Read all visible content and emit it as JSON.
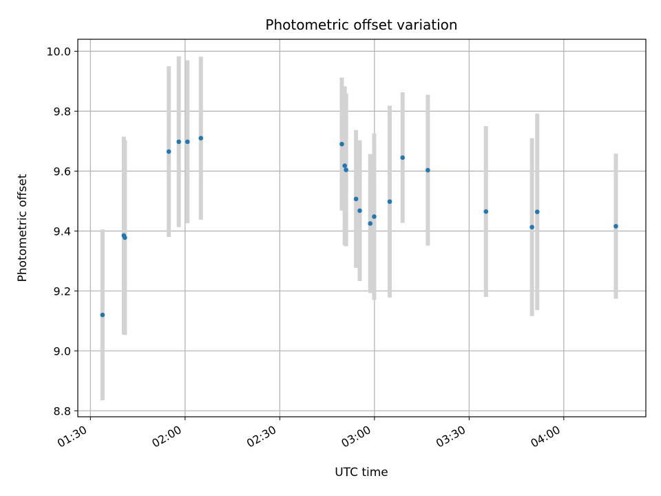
{
  "chart_data": {
    "type": "scatter",
    "title": "Photometric offset variation",
    "xlabel": "UTC time",
    "ylabel": "Photometric offset",
    "x_unit": "UTC time (HH:MM)",
    "xlim": [
      "01:26",
      "04:26"
    ],
    "ylim": [
      8.78,
      10.04
    ],
    "x_ticks": [
      "01:30",
      "02:00",
      "02:30",
      "03:00",
      "03:30",
      "04:00"
    ],
    "y_ticks": [
      "8.8",
      "9.0",
      "9.2",
      "9.4",
      "9.6",
      "9.8",
      "10.0"
    ],
    "grid": true,
    "legend": "none",
    "colors": {
      "point": "#1f77b4",
      "errorbar": "#d3d3d3",
      "grid": "#b0b0b0"
    },
    "series": [
      {
        "points": [
          {
            "x": "01:33:50",
            "y": 9.12,
            "yerr": 0.285
          },
          {
            "x": "01:40:35",
            "y": 9.385,
            "yerr": 0.33
          },
          {
            "x": "01:40:55",
            "y": 9.378,
            "yerr": 0.325
          },
          {
            "x": "01:54:50",
            "y": 9.665,
            "yerr": 0.285
          },
          {
            "x": "01:58:00",
            "y": 9.698,
            "yerr": 0.285
          },
          {
            "x": "02:00:45",
            "y": 9.698,
            "yerr": 0.272
          },
          {
            "x": "02:05:00",
            "y": 9.71,
            "yerr": 0.272
          },
          {
            "x": "02:49:40",
            "y": 9.69,
            "yerr": 0.222
          },
          {
            "x": "02:50:35",
            "y": 9.618,
            "yerr": 0.265
          },
          {
            "x": "02:51:00",
            "y": 9.604,
            "yerr": 0.255
          },
          {
            "x": "02:54:10",
            "y": 9.507,
            "yerr": 0.23
          },
          {
            "x": "02:55:20",
            "y": 9.468,
            "yerr": 0.235
          },
          {
            "x": "02:58:40",
            "y": 9.425,
            "yerr": 0.232
          },
          {
            "x": "02:59:55",
            "y": 9.448,
            "yerr": 0.278
          },
          {
            "x": "03:04:50",
            "y": 9.498,
            "yerr": 0.32
          },
          {
            "x": "03:08:55",
            "y": 9.645,
            "yerr": 0.218
          },
          {
            "x": "03:16:55",
            "y": 9.603,
            "yerr": 0.252
          },
          {
            "x": "03:35:20",
            "y": 9.465,
            "yerr": 0.285
          },
          {
            "x": "03:49:55",
            "y": 9.413,
            "yerr": 0.297
          },
          {
            "x": "03:51:35",
            "y": 9.464,
            "yerr": 0.328
          },
          {
            "x": "04:16:30",
            "y": 9.416,
            "yerr": 0.242
          }
        ]
      }
    ]
  }
}
